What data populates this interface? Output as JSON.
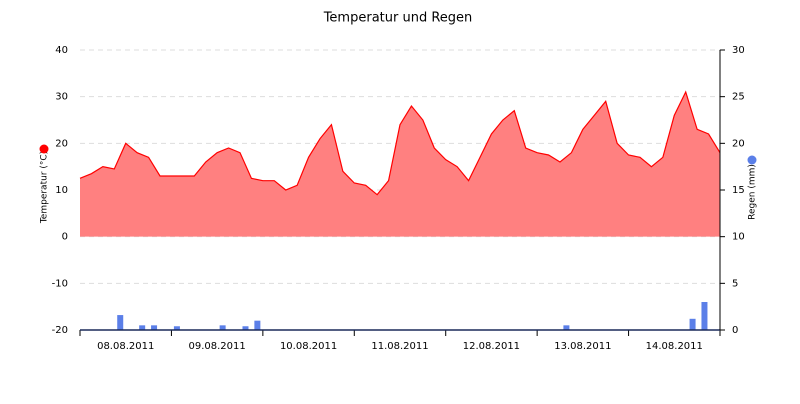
{
  "chart_data": {
    "type": "area-bar",
    "title": "Temperatur und Regen",
    "ylabel": "Temperatur (°C)",
    "y2label": "Regen (mm)",
    "xlim": [
      0,
      7
    ],
    "xticks": [
      {
        "value": 0.5,
        "label": "08.08.2011"
      },
      {
        "value": 1.5,
        "label": "09.08.2011"
      },
      {
        "value": 2.5,
        "label": "10.08.2011"
      },
      {
        "value": 3.5,
        "label": "11.08.2011"
      },
      {
        "value": 4.5,
        "label": "12.08.2011"
      },
      {
        "value": 5.5,
        "label": "13.08.2011"
      },
      {
        "value": 6.5,
        "label": "14.08.2011"
      }
    ],
    "ylim": [
      -20,
      40
    ],
    "yticks": [
      -20,
      -10,
      0,
      10,
      20,
      30,
      40
    ],
    "y2lim": [
      0,
      30
    ],
    "y2ticks": [
      0,
      5,
      10,
      15,
      20,
      25,
      30
    ],
    "grid": true,
    "series": [
      {
        "name": "Temperatur (°C)",
        "type": "area",
        "color": "#ff0000",
        "fill": "#ff8080",
        "x": [
          0,
          0.125,
          0.25,
          0.375,
          0.5,
          0.625,
          0.75,
          0.875,
          1,
          1.125,
          1.25,
          1.375,
          1.5,
          1.625,
          1.75,
          1.875,
          2,
          2.125,
          2.25,
          2.375,
          2.5,
          2.625,
          2.75,
          2.875,
          3,
          3.125,
          3.25,
          3.375,
          3.5,
          3.625,
          3.75,
          3.875,
          4,
          4.125,
          4.25,
          4.375,
          4.5,
          4.625,
          4.75,
          4.875,
          5,
          5.125,
          5.25,
          5.375,
          5.5,
          5.625,
          5.75,
          5.875,
          6,
          6.125,
          6.25,
          6.375,
          6.5,
          6.625,
          6.75,
          6.875,
          7
        ],
        "values": [
          12.5,
          13.5,
          15,
          14.5,
          20,
          18,
          17,
          13,
          13,
          13,
          13,
          16,
          18,
          19,
          18,
          12.5,
          12,
          12,
          10,
          11,
          17,
          21,
          24,
          14,
          11.5,
          11,
          9,
          12,
          24,
          28,
          25,
          19,
          16.5,
          15,
          12,
          17,
          22,
          25,
          27,
          19,
          18,
          17.5,
          16,
          18,
          23,
          26,
          29,
          20,
          17.5,
          17,
          15,
          17,
          26,
          31,
          23,
          22,
          18
        ]
      },
      {
        "name": "Regen (mm)",
        "type": "bar",
        "axis": "y2",
        "color": "#5b7fe8",
        "x": [
          0.44,
          0.68,
          0.81,
          1.06,
          1.56,
          1.81,
          1.94,
          5.32,
          6.7,
          6.83
        ],
        "values": [
          1.6,
          0.5,
          0.5,
          0.4,
          0.5,
          0.4,
          1,
          0.5,
          1.2,
          3
        ]
      }
    ]
  }
}
